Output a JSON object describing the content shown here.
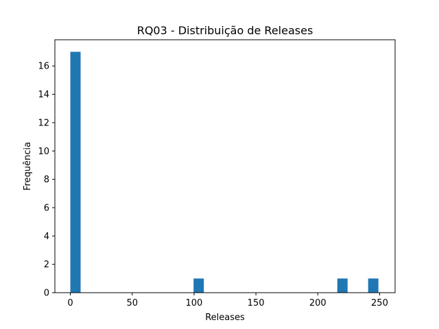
{
  "chart_data": {
    "type": "bar",
    "title": "RQ03 - Distribuição de Releases",
    "xlabel": "Releases",
    "ylabel": "Frequência",
    "xlim": [
      -12.5,
      262.5
    ],
    "ylim": [
      0,
      17.85
    ],
    "xticks": [
      0,
      50,
      100,
      150,
      200,
      250
    ],
    "yticks": [
      0,
      2,
      4,
      6,
      8,
      10,
      12,
      14,
      16
    ],
    "grid": false,
    "bar_color": "#1f77b4",
    "bins": [
      {
        "x0": 0.0,
        "x1": 8.3,
        "value": 17
      },
      {
        "x0": 99.6,
        "x1": 107.9,
        "value": 1
      },
      {
        "x0": 215.8,
        "x1": 224.1,
        "value": 1
      },
      {
        "x0": 240.7,
        "x1": 249.0,
        "value": 1
      }
    ]
  }
}
